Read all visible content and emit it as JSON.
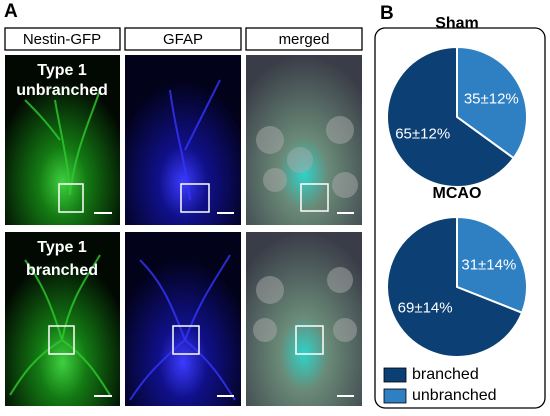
{
  "panel_a": {
    "label": "A",
    "columns": [
      "Nestin-GFP",
      "GFAP",
      "merged"
    ],
    "rows": [
      [
        "Type 1",
        "unbranched"
      ],
      [
        "Type 1",
        "branched"
      ]
    ]
  },
  "panel_b_label": "B",
  "chart_data": [
    {
      "type": "pie",
      "title": "Sham",
      "categories": [
        "branched",
        "unbranched"
      ],
      "values": [
        65,
        35
      ],
      "value_labels": [
        "65±12%",
        "35±12%"
      ],
      "colors": [
        "#0c3f74",
        "#2f7fc3"
      ]
    },
    {
      "type": "pie",
      "title": "MCAO",
      "categories": [
        "branched",
        "unbranched"
      ],
      "values": [
        69,
        31
      ],
      "value_labels": [
        "69±14%",
        "31±14%"
      ],
      "colors": [
        "#0c3f74",
        "#2f7fc3"
      ]
    }
  ]
}
